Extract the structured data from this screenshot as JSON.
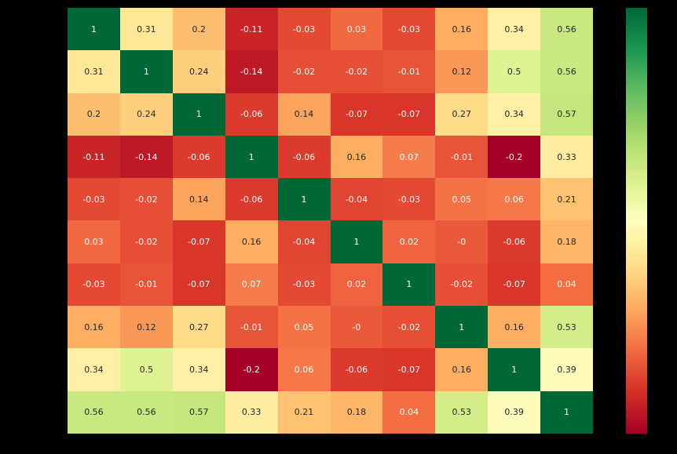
{
  "figure": {
    "background_color": "#000000"
  },
  "chart_data": {
    "type": "heatmap",
    "title": "",
    "rows": 10,
    "cols": 10,
    "annotations": [
      [
        "1",
        "0.31",
        "0.2",
        "-0.11",
        "-0.03",
        "0.03",
        "-0.03",
        "0.16",
        "0.34",
        "0.56"
      ],
      [
        "0.31",
        "1",
        "0.24",
        "-0.14",
        "-0.02",
        "-0.02",
        "-0.01",
        "0.12",
        "0.5",
        "0.56"
      ],
      [
        "0.2",
        "0.24",
        "1",
        "-0.06",
        "0.14",
        "-0.07",
        "-0.07",
        "0.27",
        "0.34",
        "0.57"
      ],
      [
        "-0.11",
        "-0.14",
        "-0.06",
        "1",
        "-0.06",
        "0.16",
        "0.07",
        "-0.01",
        "-0.2",
        "0.33"
      ],
      [
        "-0.03",
        "-0.02",
        "0.14",
        "-0.06",
        "1",
        "-0.04",
        "-0.03",
        "0.05",
        "0.06",
        "0.21"
      ],
      [
        "0.03",
        "-0.02",
        "-0.07",
        "0.16",
        "-0.04",
        "1",
        "0.02",
        "-0",
        "-0.06",
        "0.18"
      ],
      [
        "-0.03",
        "-0.01",
        "-0.07",
        "0.07",
        "-0.03",
        "0.02",
        "1",
        "-0.02",
        "-0.07",
        "0.04"
      ],
      [
        "0.16",
        "0.12",
        "0.27",
        "-0.01",
        "0.05",
        "-0",
        "-0.02",
        "1",
        "0.16",
        "0.53"
      ],
      [
        "0.34",
        "0.5",
        "0.34",
        "-0.2",
        "0.06",
        "-0.06",
        "-0.07",
        "0.16",
        "1",
        "0.39"
      ],
      [
        "0.56",
        "0.56",
        "0.57",
        "0.33",
        "0.21",
        "0.18",
        "0.04",
        "0.53",
        "0.39",
        "1"
      ]
    ],
    "values": [
      [
        1,
        0.31,
        0.2,
        -0.11,
        -0.03,
        0.03,
        -0.03,
        0.16,
        0.34,
        0.56
      ],
      [
        0.31,
        1,
        0.24,
        -0.14,
        -0.02,
        -0.02,
        -0.01,
        0.12,
        0.5,
        0.56
      ],
      [
        0.2,
        0.24,
        1,
        -0.06,
        0.14,
        -0.07,
        -0.07,
        0.27,
        0.34,
        0.57
      ],
      [
        -0.11,
        -0.14,
        -0.06,
        1,
        -0.06,
        0.16,
        0.07,
        -0.01,
        -0.2,
        0.33
      ],
      [
        -0.03,
        -0.02,
        0.14,
        -0.06,
        1,
        -0.04,
        -0.03,
        0.05,
        0.06,
        0.21
      ],
      [
        0.03,
        -0.02,
        -0.07,
        0.16,
        -0.04,
        1,
        0.02,
        0,
        -0.06,
        0.18
      ],
      [
        -0.03,
        -0.01,
        -0.07,
        0.07,
        -0.03,
        0.02,
        1,
        -0.02,
        -0.07,
        0.04
      ],
      [
        0.16,
        0.12,
        0.27,
        -0.01,
        0.05,
        0,
        -0.02,
        1,
        0.16,
        0.53
      ],
      [
        0.34,
        0.5,
        0.34,
        -0.2,
        0.06,
        -0.06,
        -0.07,
        0.16,
        1,
        0.39
      ],
      [
        0.56,
        0.56,
        0.57,
        0.33,
        0.21,
        0.18,
        0.04,
        0.53,
        0.39,
        1
      ]
    ],
    "vmin": -0.2,
    "vmax": 1.0,
    "colormap_name": "RdYlGn",
    "colormap_stops": [
      "#a50026",
      "#d73027",
      "#f46d43",
      "#fdae61",
      "#fee08b",
      "#ffffbf",
      "#d9ef8b",
      "#a6d96a",
      "#66bd63",
      "#1a9850",
      "#006837"
    ],
    "annotation_text_color_light_bg": "#262626",
    "annotation_text_color_dark_bg": "#ffffff",
    "luminance_threshold": 0.408,
    "grid": false,
    "axis_tick_labels_visible": false,
    "legend": {
      "kind": "colorbar",
      "position": "right",
      "orientation": "vertical",
      "top_value": 1.0,
      "bottom_value": -0.2,
      "tick_labels": []
    }
  }
}
